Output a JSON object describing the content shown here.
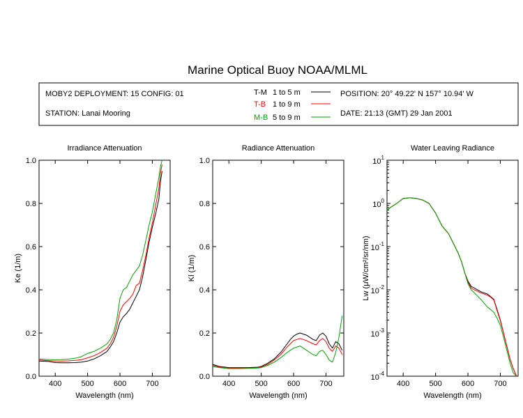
{
  "title": "Marine Optical Buoy NOAA/MLML",
  "info": {
    "deployment": "MOBY2 DEPLOYMENT: 15 CONFIG: 01",
    "station": "STATION: Lanai Mooring",
    "position": "POSITION: 20° 49.22' N   157° 10.94' W",
    "date": "DATE: 21:13 (GMT) 29 Jan 2001",
    "legend": [
      {
        "code": "T-M",
        "range": "1 to 5  m",
        "color": "#000000"
      },
      {
        "code": "T-B",
        "range": "1 to 9  m",
        "color": "#ff0000"
      },
      {
        "code": "M-B",
        "range": "5 to 9  m",
        "color": "#00a000"
      }
    ]
  },
  "chart_data": [
    {
      "type": "line",
      "title": "Irradiance Attenuation",
      "xlabel": "Wavelength (nm)",
      "ylabel": "Ke  (1/m)",
      "xlim": [
        350,
        755
      ],
      "ylim": [
        0,
        1
      ],
      "yscale": "linear",
      "xticks": [
        400,
        500,
        600,
        700
      ],
      "yticks": [
        0.0,
        0.2,
        0.4,
        0.6,
        0.8,
        1.0
      ],
      "ytick_labels": [
        "0.0",
        "0.2",
        "0.4",
        "0.6",
        "0.8",
        "1.0"
      ],
      "series": [
        {
          "name": "T-M",
          "color": "#000000",
          "x": [
            350,
            380,
            400,
            420,
            440,
            460,
            480,
            500,
            520,
            540,
            560,
            570,
            580,
            590,
            600,
            610,
            620,
            630,
            640,
            650,
            660,
            670,
            680,
            690,
            700,
            710,
            720,
            725,
            730
          ],
          "y": [
            0.07,
            0.068,
            0.063,
            0.062,
            0.062,
            0.063,
            0.065,
            0.07,
            0.08,
            0.095,
            0.115,
            0.135,
            0.16,
            0.2,
            0.25,
            0.275,
            0.29,
            0.31,
            0.34,
            0.37,
            0.4,
            0.46,
            0.54,
            0.62,
            0.69,
            0.75,
            0.82,
            0.9,
            0.95
          ]
        },
        {
          "name": "T-B",
          "color": "#ff0000",
          "x": [
            350,
            380,
            400,
            420,
            440,
            460,
            480,
            500,
            520,
            540,
            560,
            570,
            580,
            590,
            600,
            610,
            620,
            630,
            640,
            650,
            660,
            670,
            680,
            690,
            700,
            710,
            720,
            725,
            730
          ],
          "y": [
            0.075,
            0.072,
            0.07,
            0.07,
            0.071,
            0.073,
            0.076,
            0.085,
            0.095,
            0.11,
            0.13,
            0.15,
            0.18,
            0.23,
            0.3,
            0.33,
            0.345,
            0.36,
            0.38,
            0.42,
            0.43,
            0.49,
            0.56,
            0.64,
            0.71,
            0.79,
            0.87,
            0.94,
            0.98
          ]
        },
        {
          "name": "M-B",
          "color": "#00a000",
          "x": [
            350,
            380,
            400,
            420,
            440,
            460,
            480,
            500,
            520,
            540,
            560,
            570,
            580,
            590,
            600,
            610,
            620,
            630,
            640,
            650,
            660,
            670,
            680,
            690,
            700,
            710,
            720,
            725,
            730
          ],
          "y": [
            0.08,
            0.077,
            0.076,
            0.077,
            0.079,
            0.083,
            0.09,
            0.105,
            0.115,
            0.13,
            0.15,
            0.17,
            0.2,
            0.26,
            0.36,
            0.4,
            0.41,
            0.44,
            0.47,
            0.49,
            0.51,
            0.56,
            0.63,
            0.7,
            0.76,
            0.84,
            0.92,
            0.97,
            1.0
          ]
        }
      ]
    },
    {
      "type": "line",
      "title": "Radiance Attenuation",
      "xlabel": "Wavelength (nm)",
      "ylabel": "Kl  (1/m)",
      "xlim": [
        350,
        755
      ],
      "ylim": [
        0,
        1
      ],
      "yscale": "linear",
      "xticks": [
        400,
        500,
        600,
        700
      ],
      "yticks": [
        0.0,
        0.2,
        0.4,
        0.6,
        0.8,
        1.0
      ],
      "ytick_labels": [
        "0.0",
        "0.2",
        "0.4",
        "0.6",
        "0.8",
        "1.0"
      ],
      "series": [
        {
          "name": "T-M",
          "color": "#000000",
          "x": [
            350,
            370,
            400,
            430,
            460,
            490,
            500,
            520,
            540,
            560,
            580,
            590,
            600,
            610,
            620,
            640,
            660,
            670,
            680,
            690,
            700,
            710,
            720,
            730,
            740,
            750
          ],
          "y": [
            0.055,
            0.045,
            0.04,
            0.04,
            0.04,
            0.042,
            0.045,
            0.06,
            0.08,
            0.11,
            0.15,
            0.17,
            0.185,
            0.195,
            0.2,
            0.19,
            0.17,
            0.165,
            0.19,
            0.2,
            0.185,
            0.15,
            0.13,
            0.16,
            0.15,
            0.12
          ]
        },
        {
          "name": "T-B",
          "color": "#ff0000",
          "x": [
            350,
            370,
            400,
            430,
            460,
            490,
            500,
            520,
            540,
            560,
            580,
            590,
            600,
            610,
            620,
            640,
            660,
            670,
            680,
            690,
            700,
            710,
            720,
            730,
            740,
            750
          ],
          "y": [
            0.05,
            0.043,
            0.038,
            0.038,
            0.038,
            0.04,
            0.043,
            0.055,
            0.075,
            0.1,
            0.135,
            0.15,
            0.165,
            0.17,
            0.175,
            0.165,
            0.15,
            0.145,
            0.165,
            0.175,
            0.16,
            0.13,
            0.115,
            0.14,
            0.13,
            0.1
          ]
        },
        {
          "name": "M-B",
          "color": "#00a000",
          "x": [
            350,
            370,
            400,
            430,
            460,
            490,
            500,
            520,
            540,
            560,
            580,
            590,
            600,
            610,
            620,
            640,
            660,
            670,
            680,
            690,
            700,
            710,
            720,
            730,
            740,
            750
          ],
          "y": [
            0.045,
            0.04,
            0.035,
            0.035,
            0.036,
            0.038,
            0.04,
            0.05,
            0.065,
            0.085,
            0.11,
            0.12,
            0.13,
            0.135,
            0.14,
            0.12,
            0.1,
            0.095,
            0.115,
            0.12,
            0.1,
            0.075,
            0.065,
            0.11,
            0.18,
            0.28
          ]
        }
      ]
    },
    {
      "type": "line",
      "title": "Water Leaving Radiance",
      "xlabel": "Wavelength (nm)",
      "ylabel": "Lw  (μW/cm²/sr/nm)",
      "xlim": [
        350,
        755
      ],
      "ylim": [
        0.0001,
        10
      ],
      "yscale": "log",
      "xticks": [
        400,
        500,
        600,
        700
      ],
      "ytick_exponents": [
        1,
        0,
        -1,
        -2,
        -3,
        -4
      ],
      "ytick_base": "10",
      "series": [
        {
          "name": "T-M",
          "color": "#000000",
          "x": [
            350,
            360,
            380,
            400,
            420,
            440,
            460,
            480,
            500,
            520,
            540,
            560,
            570,
            580,
            590,
            600,
            610,
            620,
            640,
            660,
            670,
            680,
            690,
            700,
            710,
            720,
            730,
            740,
            750
          ],
          "y": [
            0.7,
            0.8,
            1.0,
            1.3,
            1.35,
            1.3,
            1.2,
            1.0,
            0.6,
            0.3,
            0.2,
            0.1,
            0.07,
            0.045,
            0.025,
            0.016,
            0.012,
            0.011,
            0.009,
            0.008,
            0.007,
            0.006,
            0.0035,
            0.002,
            0.001,
            0.0005,
            0.00025,
            0.00015,
            0.0001
          ]
        },
        {
          "name": "T-B",
          "color": "#ff0000",
          "x": [
            350,
            360,
            380,
            400,
            420,
            440,
            460,
            480,
            500,
            520,
            540,
            560,
            570,
            580,
            590,
            600,
            610,
            620,
            640,
            660,
            670,
            680,
            690,
            700,
            710,
            720,
            730,
            740,
            750
          ],
          "y": [
            0.7,
            0.8,
            1.0,
            1.3,
            1.35,
            1.3,
            1.2,
            1.0,
            0.6,
            0.3,
            0.2,
            0.1,
            0.07,
            0.045,
            0.025,
            0.015,
            0.011,
            0.01,
            0.0085,
            0.0075,
            0.0068,
            0.0058,
            0.0033,
            0.0019,
            0.001,
            0.0005,
            0.00025,
            0.00015,
            0.0001
          ]
        },
        {
          "name": "M-B",
          "color": "#00a000",
          "x": [
            350,
            360,
            380,
            400,
            420,
            440,
            460,
            480,
            500,
            520,
            540,
            560,
            570,
            580,
            590,
            600,
            610,
            620,
            640,
            660,
            670,
            680,
            690,
            700,
            710,
            720,
            730,
            740,
            750
          ],
          "y": [
            0.7,
            0.8,
            1.0,
            1.3,
            1.35,
            1.3,
            1.2,
            1.0,
            0.6,
            0.3,
            0.2,
            0.1,
            0.07,
            0.045,
            0.025,
            0.014,
            0.01,
            0.0085,
            0.006,
            0.004,
            0.0035,
            0.003,
            0.0022,
            0.0015,
            0.0008,
            0.0004,
            0.0002,
            0.00012,
            0.0001
          ]
        }
      ]
    }
  ]
}
